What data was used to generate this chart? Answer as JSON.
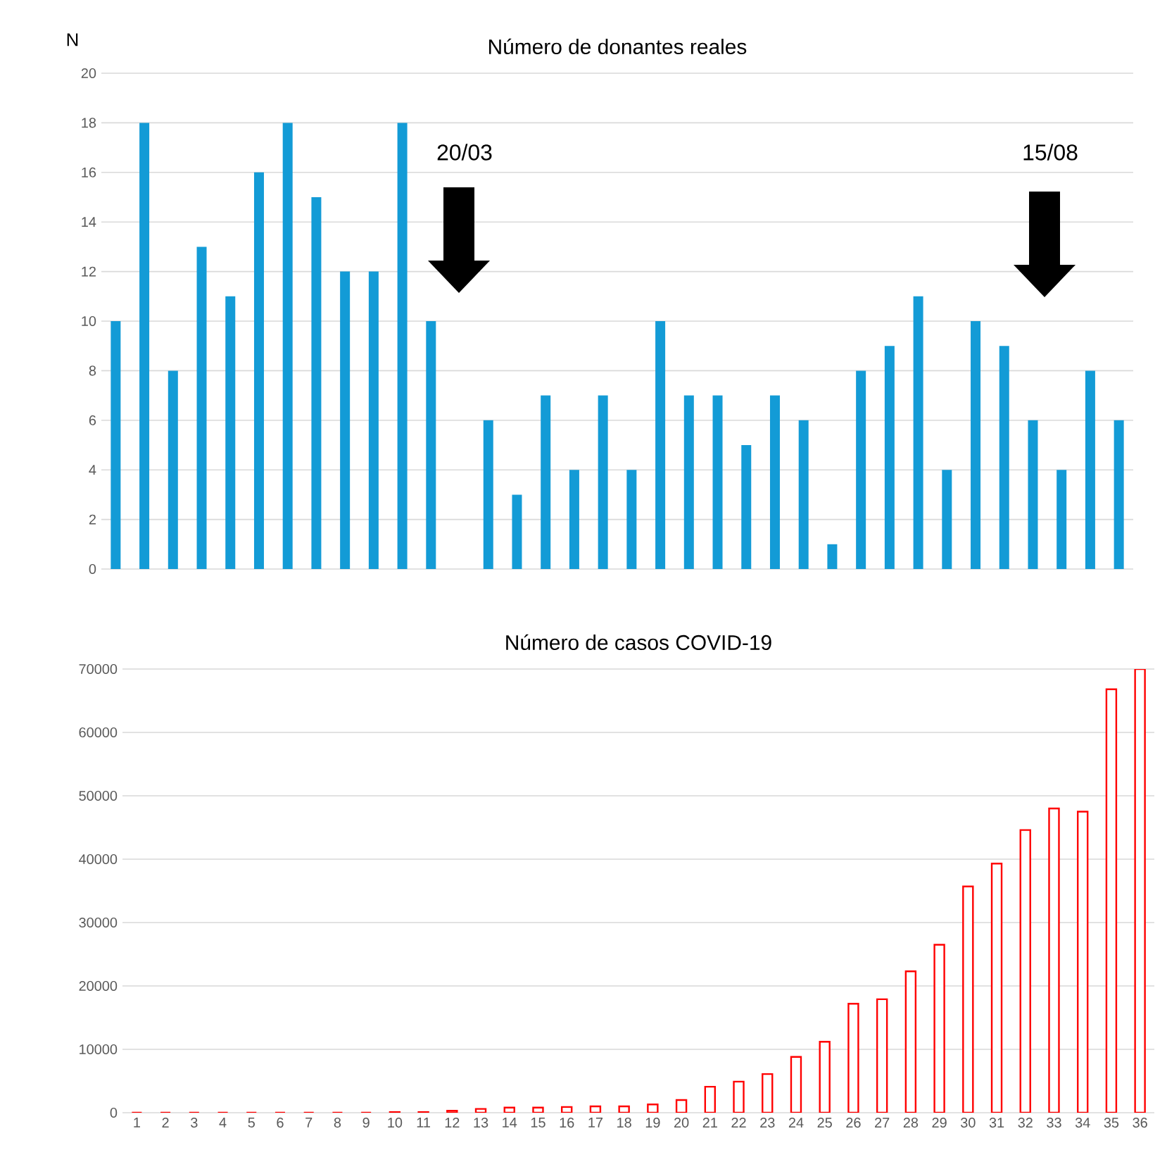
{
  "chart_data": [
    {
      "type": "bar",
      "title": "Número de donantes reales",
      "ylabel": "N",
      "categories": [
        null,
        null,
        null,
        null,
        null,
        null,
        null,
        null,
        null,
        null,
        null,
        null,
        null,
        null,
        null,
        null,
        null,
        null,
        null,
        null,
        null,
        null,
        null,
        null,
        null,
        null,
        null,
        null,
        null,
        null,
        null,
        null,
        null,
        null,
        null,
        null
      ],
      "values": [
        10,
        18,
        8,
        13,
        11,
        16,
        18,
        15,
        12,
        12,
        18,
        10,
        null,
        6,
        3,
        7,
        4,
        7,
        4,
        10,
        7,
        7,
        5,
        7,
        6,
        1,
        8,
        9,
        11,
        4,
        10,
        9,
        6,
        4,
        8,
        6
      ],
      "color": "#139bd6",
      "ylim": [
        0,
        20
      ],
      "yticks": [
        0,
        2,
        4,
        6,
        8,
        10,
        12,
        14,
        16,
        18,
        20
      ],
      "grid": "y",
      "tick_labels": "y",
      "annotations": [
        "20/03",
        "15/08"
      ]
    },
    {
      "type": "bar",
      "title": "Número de casos COVID-19",
      "categories": [
        "1",
        "2",
        "3",
        "4",
        "5",
        "6",
        "7",
        "8",
        "9",
        "10",
        "11",
        "12",
        "13",
        "14",
        "15",
        "16",
        "17",
        "18",
        "19",
        "20",
        "21",
        "22",
        "23",
        "24",
        "25",
        "26",
        "27",
        "28",
        "29",
        "30",
        "31",
        "32",
        "33",
        "34",
        "35",
        "36"
      ],
      "values": [
        0,
        0,
        0,
        0,
        0,
        0,
        0,
        0,
        0,
        100,
        100,
        300,
        600,
        800,
        800,
        900,
        1000,
        1000,
        1300,
        2000,
        4100,
        4900,
        6100,
        8800,
        11200,
        17200,
        17900,
        22300,
        26500,
        35700,
        39300,
        44600,
        48000,
        47500,
        66800,
        70000
      ],
      "color": "#ff0000",
      "ylim": [
        0,
        70000
      ],
      "yticks": [
        0,
        10000,
        20000,
        30000,
        40000,
        50000,
        60000,
        70000
      ],
      "grid": "y"
    }
  ]
}
